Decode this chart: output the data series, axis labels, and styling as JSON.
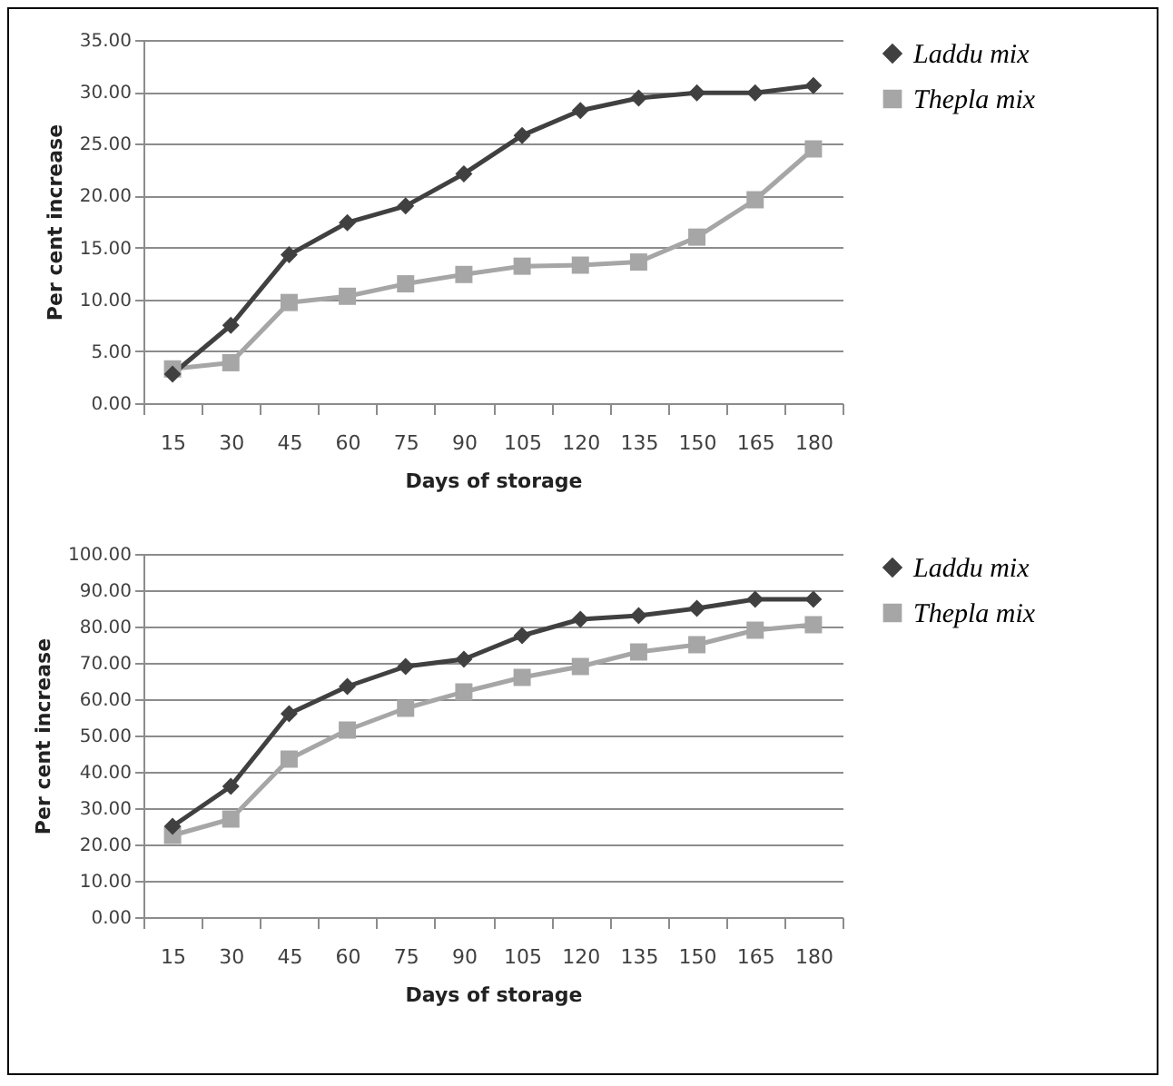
{
  "chart_data": [
    {
      "type": "line",
      "xlabel": "Days of storage",
      "ylabel": "Per cent increase",
      "categories": [
        "15",
        "30",
        "45",
        "60",
        "75",
        "90",
        "105",
        "120",
        "135",
        "150",
        "165",
        "180"
      ],
      "series": [
        {
          "name": "Laddu mix",
          "color": "#404040",
          "marker": "diamond",
          "values": [
            2.8,
            7.5,
            14.3,
            17.4,
            19.0,
            22.1,
            25.8,
            28.2,
            29.4,
            29.9,
            29.9,
            30.6
          ]
        },
        {
          "name": "Thepla mix",
          "color": "#a6a6a6",
          "marker": "square",
          "values": [
            3.3,
            3.9,
            9.7,
            10.3,
            11.5,
            12.4,
            13.2,
            13.3,
            13.6,
            16.0,
            19.6,
            24.5
          ]
        }
      ],
      "ylim": [
        0,
        35
      ],
      "yticks": [
        {
          "value": 0,
          "label": "0.00"
        },
        {
          "value": 5,
          "label": "5.00"
        },
        {
          "value": 10,
          "label": "10.00"
        },
        {
          "value": 15,
          "label": "15.00"
        },
        {
          "value": 20,
          "label": "20.00"
        },
        {
          "value": 25,
          "label": "25.00"
        },
        {
          "value": 30,
          "label": "30.00"
        },
        {
          "value": 35,
          "label": "35.00"
        }
      ],
      "grid": "y",
      "legend": "right"
    },
    {
      "type": "line",
      "xlabel": "Days of storage",
      "ylabel": "Per cent increase",
      "categories": [
        "15",
        "30",
        "45",
        "60",
        "75",
        "90",
        "105",
        "120",
        "135",
        "150",
        "165",
        "180"
      ],
      "series": [
        {
          "name": "Laddu mix",
          "color": "#404040",
          "marker": "diamond",
          "values": [
            25,
            36,
            56,
            63.5,
            69,
            71,
            77.5,
            82,
            83,
            85,
            87.5,
            87.5
          ]
        },
        {
          "name": "Thepla mix",
          "color": "#a6a6a6",
          "marker": "square",
          "values": [
            22.5,
            27,
            43.5,
            51.5,
            57.5,
            62,
            66,
            69,
            73,
            75,
            79,
            80.5
          ]
        }
      ],
      "ylim": [
        0,
        100
      ],
      "yticks": [
        {
          "value": 0,
          "label": "0.00"
        },
        {
          "value": 10,
          "label": "10.00"
        },
        {
          "value": 20,
          "label": "20.00"
        },
        {
          "value": 30,
          "label": "30.00"
        },
        {
          "value": 40,
          "label": "40.00"
        },
        {
          "value": 50,
          "label": "50.00"
        },
        {
          "value": 60,
          "label": "60.00"
        },
        {
          "value": 70,
          "label": "70.00"
        },
        {
          "value": 80,
          "label": "80.00"
        },
        {
          "value": 90,
          "label": "90.00"
        },
        {
          "value": 100,
          "label": "100.00"
        }
      ],
      "grid": "y",
      "legend": "right"
    }
  ]
}
